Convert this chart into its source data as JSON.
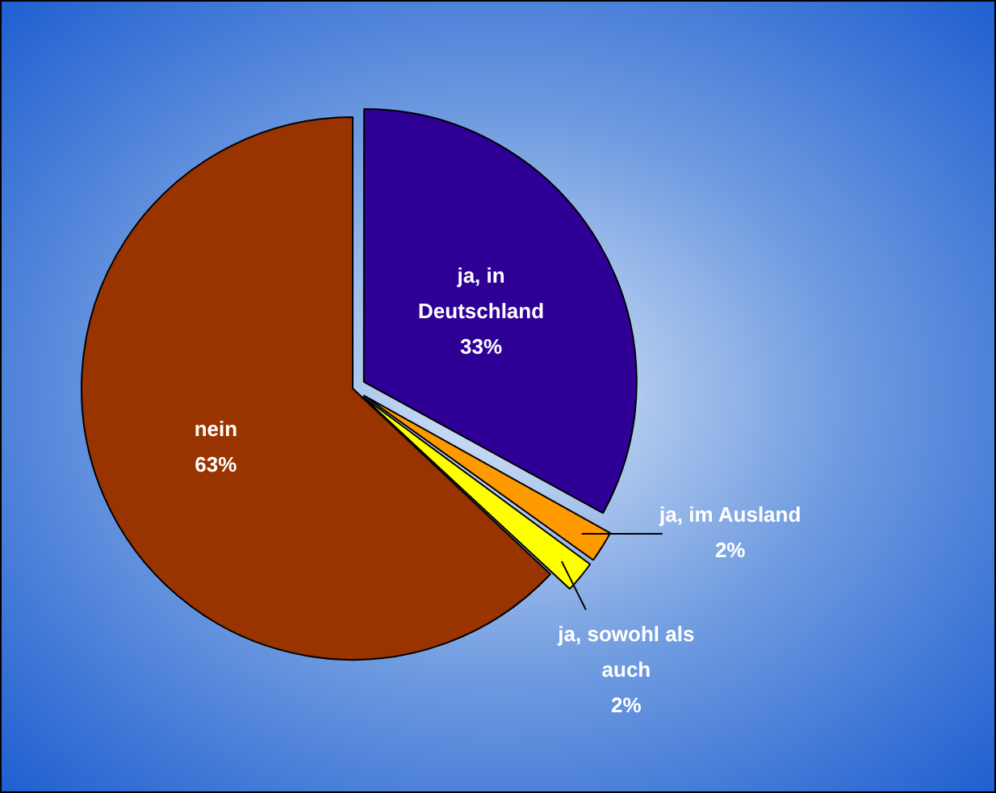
{
  "chart_data": {
    "type": "pie",
    "categories": [
      "ja, in Deutschland",
      "ja, im Ausland",
      "ja, sowohl als auch",
      "nein"
    ],
    "values": [
      33,
      2,
      2,
      63
    ],
    "colors": [
      "#2e0096",
      "#ff9900",
      "#ffff00",
      "#993300"
    ],
    "value_labels": [
      "33%",
      "2%",
      "2%",
      "63%"
    ],
    "legend": false
  }
}
